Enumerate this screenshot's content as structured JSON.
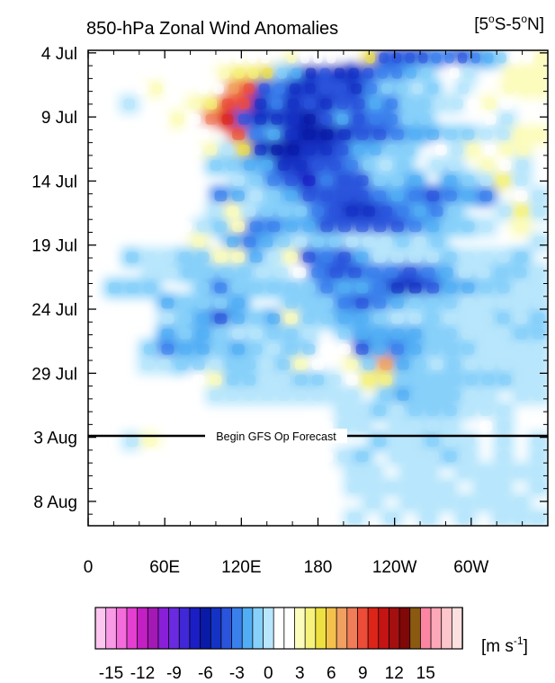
{
  "chart_data": {
    "type": "heatmap",
    "title": "850-hPa Zonal Wind Anomalies",
    "subtitle": "[5oS-5oN]",
    "subtitle_parts": {
      "lead": "[5",
      "sup1": "o",
      "mid": "S-5",
      "sup2": "o",
      "tail": "N]"
    },
    "xlabel": "",
    "ylabel": "",
    "x_ticks": [
      "0",
      "60E",
      "120E",
      "180",
      "120W",
      "60W"
    ],
    "y_ticks": [
      "4 Jul",
      "9 Jul",
      "14 Jul",
      "19 Jul",
      "24 Jul",
      "29 Jul",
      "3 Aug",
      "8 Aug"
    ],
    "annotation": "Begin GFS Op Forecast",
    "colorbar": {
      "unit_label": "[m s-1]",
      "unit_parts": {
        "lead": "[m s",
        "sup": "-1",
        "tail": "]"
      },
      "tick_labels": [
        "-15",
        "-12",
        "-9",
        "-6",
        "-3",
        "0",
        "3",
        "6",
        "9",
        "12",
        "15"
      ],
      "colors": [
        "#fcc6f0",
        "#f99ae6",
        "#f46cdc",
        "#e43fd0",
        "#c41fc4",
        "#a419b6",
        "#8a1fd8",
        "#6a2ae0",
        "#4028d8",
        "#1a1ec4",
        "#0a1aa8",
        "#1432c4",
        "#2a54dc",
        "#3a80ec",
        "#52aef4",
        "#86d0fa",
        "#b8e6fc",
        "#ffffff",
        "#ffffff",
        "#fcfcbc",
        "#f6f27c",
        "#eee040",
        "#f4c24c",
        "#f0a060",
        "#f07c58",
        "#ec4c38",
        "#dc2418",
        "#c41414",
        "#a41010",
        "#800808",
        "#8a5a10",
        "#fc86a2",
        "#fca8b8",
        "#fcc6cc",
        "#fce0e0"
      ]
    },
    "grid": false,
    "legend": "colorbar-bottom",
    "anomaly_rows": [
      "0000110000111102111004-5-5-5-5-4-4-5-4-3-2112",
      "0000111002334-2-3-6-5-6-6-5-4-4-3-201-100222",
      "00012101168-5-4-6-6-5-5-6-4-2-2-1-20-100222",
      "00-10002388-6-4-6-5-6-5-5-3-4-2-2-1-112100",
      "000012179-5-6-6-6-7-5-3-5-4-4-2-20001-100",
      "000000108-4-3-6-7-7-6-5-5-4-3-3-2-2-1-122",
      "00000012-14-6-7-7-6-6-5-3-3-2-201-121220",
      "0000000-2-2-3-3-6-6-5-5-4-2-1-20-1-1021-10",
      "00000000-1-2-4-5-8-4-5-5-2-2-30-3-2-13-10",
      "0000000-4-3-1-2-3-5-5-5-5-4-3-4-5-4-3-401-1",
      "0000000-12-1-2-2-2-4-5-6-6-5-4-3-4-200-13-1",
      "000001-1-22-4-4-3-3-5-5-5-5-5-4-3-2-2-1020",
      "00000020-3-4-3-2-1-2-2-1-1-1-2-1-200000-1",
      "00-2-1-1-2-222-3-12-5-4-5-3-1-1-1-1-2-1-1-1-20",
      "000-1-1-2-2-2-2-1-11-4-5-5-4-4-5-4-3-1-1-2-2-1",
      "0-2-2-200-2-4-2-2-2-2-2-4-3-3-4-6-6-5-3-3-2-2-1-1",
      "0000-3-2-2-2-300-2-2-2-4-5-4-3-2-2-2-1-1-1-1-1",
      "0000-1-2-3-5-3-2-32-2-2-3-3-2-1-1-2-1-1-1-2-1-2",
      "0000-3-2-3-2-1-1-2-2-10-2-3-3-3-3-2-2-1-1-1-2-2",
      "000-2-4-3-3-2-3-2-1-2-211-5-3-4-3-2-2-2-1-1-1-1",
      "000-1-1-2-2-1-2-2-1-22102-26-3-2-1-2-1-1-1-1-1",
      "00000012-2-2-1-1-2-2-1133-2-2-2-2-2-2-2-1-1",
      "0000000-1-1-1-1-1-1-1-1-10-2-3-2-2-2-1-10-1-1",
      "00000000000000-1-1-2-1-2-2-2-1-1-100",
      "00001000000001-1-10-1-1-1-101-100",
      "00-12000000000000-2-1-1-2-1-10-10-1",
      "00010100000001-1-20-1-1-1-2-10-10-1",
      "00000000000000-1-10-1-10-1-1-1-1-1",
      "00000000000000-1-1-1-1-1-10-1-10-1",
      "000000000000000-10-1-1-1-1-1-1-10",
      "00000000000000-10-10-10-10-1-1-1"
    ]
  }
}
